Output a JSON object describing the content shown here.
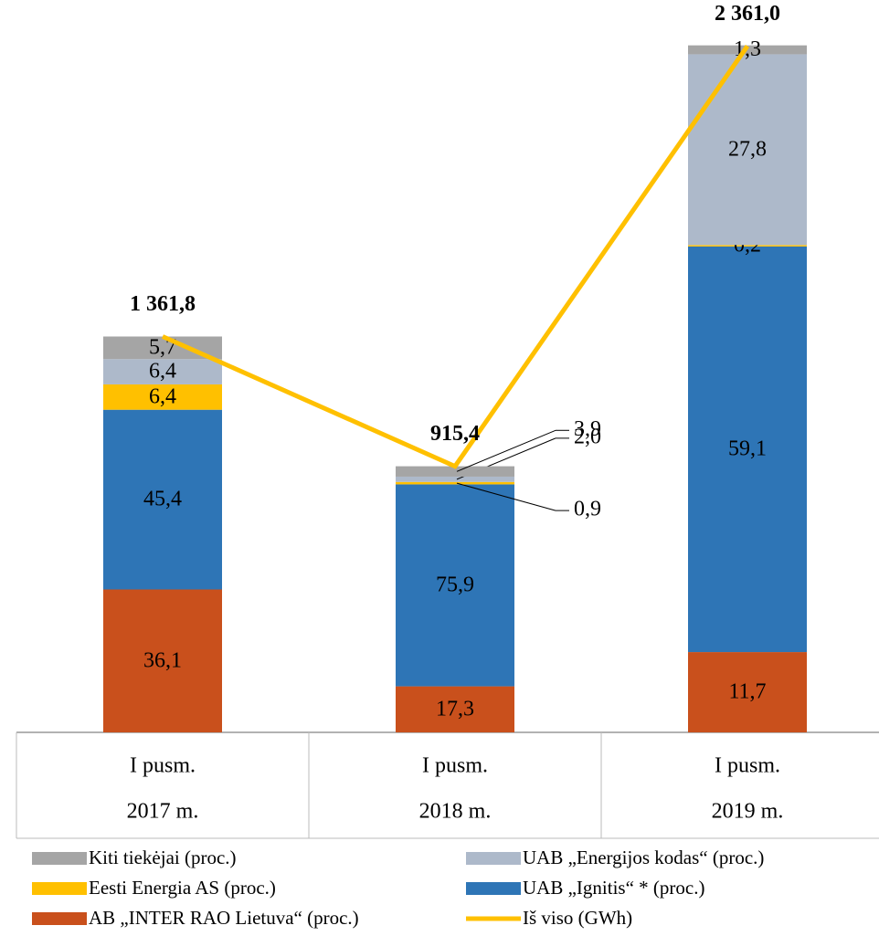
{
  "chart_data": {
    "type": "bar",
    "stacked": true,
    "categories": [
      [
        "I pusm.",
        "2017 m."
      ],
      [
        "I pusm.",
        "2018 m."
      ],
      [
        "I pusm.",
        "2019 m."
      ]
    ],
    "series": [
      {
        "name": "AB „INTER RAO Lietuva“ (proc.)",
        "color": "#c9501c",
        "values": [
          36.1,
          17.3,
          11.7
        ],
        "value_labels": [
          "36,1",
          "17,3",
          "11,7"
        ]
      },
      {
        "name": "UAB  „Ignitis“ * (proc.)",
        "color": "#2e75b6",
        "values": [
          45.4,
          75.9,
          59.1
        ],
        "value_labels": [
          "45,4",
          "75,9",
          "59,1"
        ]
      },
      {
        "name": "Eesti Energia AS (proc.)",
        "color": "#ffc000",
        "values": [
          6.4,
          0.9,
          0.2
        ],
        "value_labels": [
          "6,4",
          "0,9",
          "0,2"
        ]
      },
      {
        "name": "UAB „Energijos kodas“ (proc.)",
        "color": "#adb9ca",
        "values": [
          6.4,
          2.0,
          27.8
        ],
        "value_labels": [
          "6,4",
          "2,0",
          "27,8"
        ]
      },
      {
        "name": "Kiti tiekėjai (proc.)",
        "color": "#a5a5a5",
        "values": [
          5.7,
          3.9,
          1.3
        ],
        "value_labels": [
          "5,7",
          "3,9",
          "1,3"
        ]
      },
      {
        "name": "Iš viso (GWh)",
        "type": "line",
        "axis": "y2",
        "color": "#ffc000",
        "values": [
          1361.8,
          915.4,
          2361.0
        ],
        "value_labels": [
          "1 361,8",
          "915,4",
          "2 361,0"
        ]
      }
    ],
    "y2lim": [
      0,
      2400
    ]
  }
}
